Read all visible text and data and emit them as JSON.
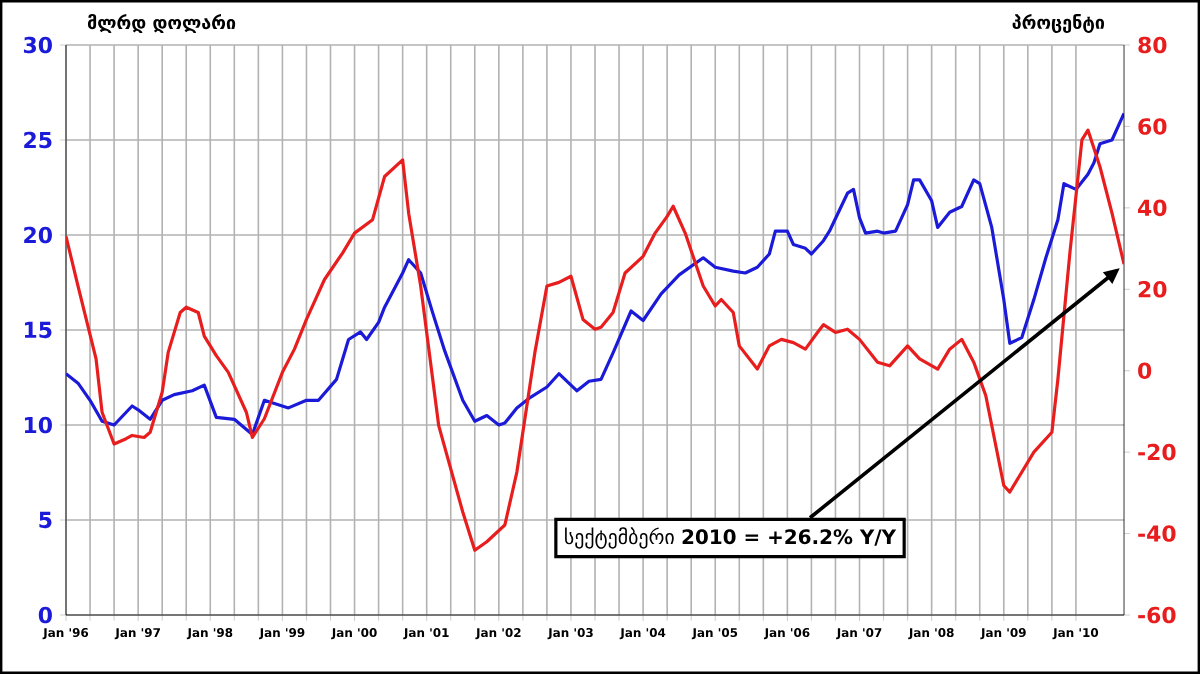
{
  "chart_data": {
    "type": "line",
    "ylabel": "მლრდ დოლარი",
    "y2label": "პროცენტი",
    "xlim": [
      "1996-01",
      "2010-09"
    ],
    "xticks": [
      {
        "value": "1996-01",
        "label": "Jan '96"
      },
      {
        "value": "1997-01",
        "label": "Jan '97"
      },
      {
        "value": "1998-01",
        "label": "Jan '98"
      },
      {
        "value": "1999-01",
        "label": "Jan '99"
      },
      {
        "value": "2000-01",
        "label": "Jan '00"
      },
      {
        "value": "2001-01",
        "label": "Jan '01"
      },
      {
        "value": "2002-01",
        "label": "Jan '02"
      },
      {
        "value": "2003-01",
        "label": "Jan '03"
      },
      {
        "value": "2004-01",
        "label": "Jan '04"
      },
      {
        "value": "2005-01",
        "label": "Jan '05"
      },
      {
        "value": "2006-01",
        "label": "Jan '06"
      },
      {
        "value": "2007-01",
        "label": "Jan '07"
      },
      {
        "value": "2008-01",
        "label": "Jan '08"
      },
      {
        "value": "2009-01",
        "label": "Jan '09"
      },
      {
        "value": "2010-01",
        "label": "Jan '10"
      }
    ],
    "ylim": [
      0,
      30
    ],
    "yticks": [
      0,
      5,
      10,
      15,
      20,
      25,
      30
    ],
    "y2lim": [
      -60,
      80
    ],
    "y2ticks": [
      -60,
      -40,
      -20,
      0,
      20,
      40,
      60,
      80
    ],
    "grid": true,
    "marker": "none",
    "line_style": "solid",
    "annotations": [
      "სექტემბერი **2010 = +26.2% Y/Y**"
    ],
    "series": [
      {
        "color": "#1a1ad8",
        "x": [
          "1996-01",
          "1996-03",
          "1996-05",
          "1996-07",
          "1996-09",
          "1996-12",
          "1997-01",
          "1997-03",
          "1997-05",
          "1997-07",
          "1997-10",
          "1997-12",
          "1998-02",
          "1998-05",
          "1998-08",
          "1998-10",
          "1999-02",
          "1999-05",
          "1999-07",
          "1999-10",
          "1999-12",
          "2000-02",
          "2000-03",
          "2000-05",
          "2000-06",
          "2000-09",
          "2000-10",
          "2000-12",
          "2001-02",
          "2001-04",
          "2001-07",
          "2001-09",
          "2001-11",
          "2002-01",
          "2002-02",
          "2002-04",
          "2002-06",
          "2002-09",
          "2002-11",
          "2003-02",
          "2003-04",
          "2003-06",
          "2003-08",
          "2003-11",
          "2004-01",
          "2004-04",
          "2004-07",
          "2004-11",
          "2005-01",
          "2005-04",
          "2005-06",
          "2005-08",
          "2005-10",
          "2005-11",
          "2006-01",
          "2006-02",
          "2006-04",
          "2006-05",
          "2006-07",
          "2006-08",
          "2006-11",
          "2006-12",
          "2007-01",
          "2007-02",
          "2007-04",
          "2007-05",
          "2007-07",
          "2007-09",
          "2007-10",
          "2007-11",
          "2008-01",
          "2008-02",
          "2008-04",
          "2008-06",
          "2008-08",
          "2008-09",
          "2008-11",
          "2009-01",
          "2009-02",
          "2009-04",
          "2009-06",
          "2009-08",
          "2009-10",
          "2009-11",
          "2010-01",
          "2010-03",
          "2010-04",
          "2010-05",
          "2010-07",
          "2010-09"
        ],
        "values": [
          12.7,
          12.2,
          11.3,
          10.2,
          10.0,
          11.0,
          10.8,
          10.3,
          11.3,
          11.6,
          11.8,
          12.1,
          10.4,
          10.3,
          9.5,
          11.3,
          10.9,
          11.3,
          11.3,
          12.4,
          14.5,
          14.9,
          14.5,
          15.4,
          16.2,
          18.0,
          18.7,
          18.0,
          15.9,
          13.9,
          11.3,
          10.2,
          10.5,
          10.0,
          10.1,
          10.9,
          11.4,
          12.0,
          12.7,
          11.8,
          12.3,
          12.4,
          13.8,
          16.0,
          15.5,
          16.9,
          17.9,
          18.8,
          18.3,
          18.1,
          18.0,
          18.3,
          19.0,
          20.2,
          20.2,
          19.5,
          19.3,
          19.0,
          19.7,
          20.2,
          22.2,
          22.4,
          20.9,
          20.1,
          20.2,
          20.1,
          20.2,
          21.6,
          22.9,
          22.9,
          21.8,
          20.4,
          21.2,
          21.5,
          22.9,
          22.7,
          20.4,
          16.6,
          14.3,
          14.6,
          16.6,
          18.8,
          20.8,
          22.7,
          22.4,
          23.2,
          23.8,
          24.8,
          25.0,
          26.4
        ]
      },
      {
        "color": "#e81e1e",
        "axis": "y2",
        "x": [
          "1996-01",
          "1996-03",
          "1996-06",
          "1996-07",
          "1996-09",
          "1996-11",
          "1996-12",
          "1997-02",
          "1997-03",
          "1997-05",
          "1997-06",
          "1997-08",
          "1997-09",
          "1997-11",
          "1997-12",
          "1998-02",
          "1998-04",
          "1998-07",
          "1998-08",
          "1998-10",
          "1999-01",
          "1999-03",
          "1999-05",
          "1999-08",
          "1999-11",
          "2000-01",
          "2000-04",
          "2000-06",
          "2000-09",
          "2000-10",
          "2000-12",
          "2001-03",
          "2001-07",
          "2001-09",
          "2001-11",
          "2002-02",
          "2002-04",
          "2002-07",
          "2002-09",
          "2002-11",
          "2003-01",
          "2003-03",
          "2003-05",
          "2003-06",
          "2003-08",
          "2003-10",
          "2004-01",
          "2004-03",
          "2004-05",
          "2004-06",
          "2004-08",
          "2004-11",
          "2005-01",
          "2005-02",
          "2005-04",
          "2005-05",
          "2005-08",
          "2005-10",
          "2005-12",
          "2006-02",
          "2006-04",
          "2006-06",
          "2006-07",
          "2006-09",
          "2006-11",
          "2007-01",
          "2007-04",
          "2007-06",
          "2007-09",
          "2007-11",
          "2008-02",
          "2008-04",
          "2008-06",
          "2008-08",
          "2008-10",
          "2009-01",
          "2009-02",
          "2009-04",
          "2009-06",
          "2009-09",
          "2009-10",
          "2009-12",
          "2010-02",
          "2010-03",
          "2010-05",
          "2010-07",
          "2010-09"
        ],
        "values": [
          33.0,
          20.8,
          2.9,
          -10.2,
          -18.0,
          -16.7,
          -15.9,
          -16.4,
          -15.1,
          -5.3,
          4.5,
          14.3,
          15.6,
          14.3,
          8.5,
          3.7,
          -0.4,
          -10.2,
          -16.4,
          -11.8,
          -0.4,
          5.3,
          12.6,
          22.4,
          28.9,
          33.8,
          37.1,
          47.7,
          51.8,
          38.7,
          20.8,
          -13.5,
          -34.7,
          -44.1,
          -42.0,
          -37.9,
          -24.9,
          4.5,
          20.8,
          21.7,
          23.2,
          12.6,
          10.2,
          10.7,
          14.3,
          24.0,
          28.1,
          33.8,
          37.9,
          40.4,
          33.8,
          20.8,
          15.9,
          17.5,
          14.3,
          6.1,
          0.4,
          6.1,
          7.7,
          6.9,
          5.3,
          9.4,
          11.3,
          9.4,
          10.2,
          7.7,
          2.1,
          1.2,
          6.1,
          2.9,
          0.4,
          5.3,
          7.7,
          2.1,
          -6.1,
          -28.2,
          -29.8,
          -24.9,
          -20.0,
          -15.1,
          -2.1,
          29.0,
          56.7,
          59.1,
          50.1,
          38.7,
          26.2
        ]
      }
    ]
  }
}
